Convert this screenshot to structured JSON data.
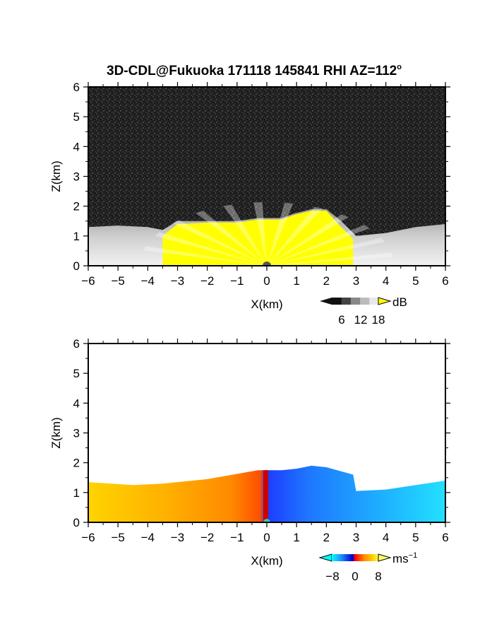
{
  "title": "3D-CDL@Fukuoka 171118 145841 RHI AZ=112",
  "title_degree_symbol": "o",
  "chart_data": [
    {
      "type": "heatmap",
      "panel": "reflectivity",
      "xlabel": "X(km)",
      "ylabel": "Z(km)",
      "xlim": [
        -6,
        6
      ],
      "ylim": [
        0,
        6
      ],
      "xticks": [
        "−6",
        "−5",
        "−4",
        "−3",
        "−2",
        "−1",
        "0",
        "1",
        "2",
        "3",
        "4",
        "5",
        "6"
      ],
      "yticks": [
        "0",
        "1",
        "2",
        "3",
        "4",
        "5",
        "6"
      ],
      "colorbar": {
        "unit": "dB",
        "ticks": [
          "6",
          "12",
          "18"
        ],
        "range": [
          0,
          20
        ],
        "colors": [
          "#111111",
          "#444444",
          "#888888",
          "#bbbbbb",
          "#e8e8e8"
        ],
        "over_color": "#ffff00"
      },
      "background_noise_color": "#2a2a2a",
      "echo_top_km": [
        {
          "x": -6.0,
          "z": 1.3
        },
        {
          "x": -5.0,
          "z": 1.35
        },
        {
          "x": -4.0,
          "z": 1.3
        },
        {
          "x": -3.5,
          "z": 1.2
        },
        {
          "x": -3.0,
          "z": 1.5
        },
        {
          "x": -2.0,
          "z": 1.5
        },
        {
          "x": -1.0,
          "z": 1.5
        },
        {
          "x": -0.3,
          "z": 1.6
        },
        {
          "x": 0.5,
          "z": 1.6
        },
        {
          "x": 0.9,
          "z": 1.75
        },
        {
          "x": 1.5,
          "z": 1.9
        },
        {
          "x": 2.0,
          "z": 1.9
        },
        {
          "x": 2.5,
          "z": 1.5
        },
        {
          "x": 3.0,
          "z": 1.0
        },
        {
          "x": 4.0,
          "z": 1.1
        },
        {
          "x": 5.0,
          "z": 1.3
        },
        {
          "x": 6.0,
          "z": 1.4
        }
      ],
      "strong_echo_top_km": [
        {
          "x": -3.5,
          "z": 1.0
        },
        {
          "x": -3.0,
          "z": 1.4
        },
        {
          "x": -2.0,
          "z": 1.45
        },
        {
          "x": -1.0,
          "z": 1.45
        },
        {
          "x": -0.3,
          "z": 1.55
        },
        {
          "x": 0.5,
          "z": 1.55
        },
        {
          "x": 0.9,
          "z": 1.7
        },
        {
          "x": 1.5,
          "z": 1.85
        },
        {
          "x": 2.0,
          "z": 1.85
        },
        {
          "x": 2.5,
          "z": 1.3
        },
        {
          "x": 2.9,
          "z": 0.9
        }
      ]
    },
    {
      "type": "heatmap",
      "panel": "doppler_velocity",
      "xlabel": "X(km)",
      "ylabel": "Z(km)",
      "xlim": [
        -6,
        6
      ],
      "ylim": [
        0,
        6
      ],
      "xticks": [
        "−6",
        "−5",
        "−4",
        "−3",
        "−2",
        "−1",
        "0",
        "1",
        "2",
        "3",
        "4",
        "5",
        "6"
      ],
      "yticks": [
        "0",
        "1",
        "2",
        "3",
        "4",
        "5",
        "6"
      ],
      "colorbar": {
        "unit": "ms",
        "unit_exponent": "−1",
        "ticks": [
          "−8",
          "0",
          "8"
        ],
        "range": [
          -10,
          10
        ],
        "colors": [
          "#00ffff",
          "#1e90ff",
          "#0000cd",
          "#ff0000",
          "#ff8c00",
          "#ffd700",
          "#ffff66"
        ]
      },
      "echo_top_km": [
        {
          "x": -6.0,
          "z": 1.35
        },
        {
          "x": -4.5,
          "z": 1.25
        },
        {
          "x": -3.5,
          "z": 1.3
        },
        {
          "x": -2.0,
          "z": 1.45
        },
        {
          "x": -0.3,
          "z": 1.75
        },
        {
          "x": 0.5,
          "z": 1.75
        },
        {
          "x": 1.0,
          "z": 1.8
        },
        {
          "x": 1.5,
          "z": 1.9
        },
        {
          "x": 2.0,
          "z": 1.85
        },
        {
          "x": 2.9,
          "z": 1.6
        },
        {
          "x": 3.0,
          "z": 1.05
        },
        {
          "x": 4.0,
          "z": 1.1
        },
        {
          "x": 5.0,
          "z": 1.25
        },
        {
          "x": 6.0,
          "z": 1.4
        }
      ],
      "velocity_profile_ms": [
        {
          "x": -6.0,
          "v": 9
        },
        {
          "x": -4.0,
          "v": 8
        },
        {
          "x": -2.0,
          "v": 6
        },
        {
          "x": -0.7,
          "v": 4
        },
        {
          "x": -0.2,
          "v": 1
        },
        {
          "x": 0.0,
          "v": -4
        },
        {
          "x": 0.5,
          "v": -6
        },
        {
          "x": 1.5,
          "v": -6
        },
        {
          "x": 3.0,
          "v": -7
        },
        {
          "x": 4.5,
          "v": -8
        },
        {
          "x": 6.0,
          "v": -9
        }
      ]
    }
  ]
}
